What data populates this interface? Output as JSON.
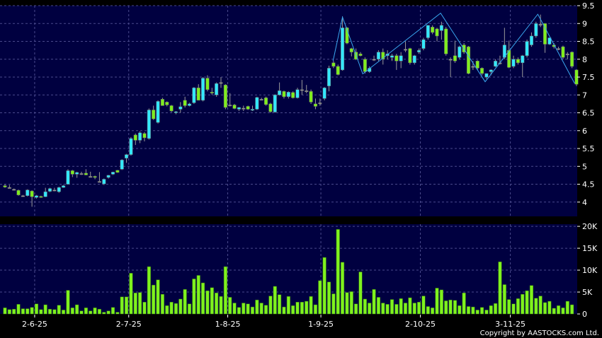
{
  "copyright": "Copyright by AASTOCKS.com Ltd.",
  "colors": {
    "background": "#000000",
    "panel": "#000040",
    "up": "#33e8ff",
    "down": "#7fee1e",
    "neutral": "#a0a0a0",
    "wick": "#9a9a9a",
    "volume": "#7ff21e",
    "zigzag": "#3aa8f0",
    "grid": "#4a4a8c"
  },
  "chart_data": [
    {
      "type": "candlestick",
      "title": "",
      "ylim": [
        3.6,
        9.5
      ],
      "yticks": [
        4,
        4.5,
        5,
        5.5,
        6,
        6.5,
        7,
        7.5,
        8,
        8.5,
        9,
        9.5
      ],
      "ytick_labels": [
        "4",
        "4.5",
        "5",
        "5.5",
        "6",
        "6.5",
        "7",
        "7.5",
        "8",
        "8.5",
        "9",
        "9.5"
      ],
      "grid": true,
      "axis_side": "right",
      "ohlc_fields": [
        "open",
        "high",
        "low",
        "close"
      ],
      "ohlc": [
        [
          4.46,
          4.5,
          4.4,
          4.42
        ],
        [
          4.41,
          4.48,
          4.38,
          4.41
        ],
        [
          4.36,
          4.38,
          4.33,
          4.36
        ],
        [
          4.33,
          4.35,
          4.18,
          4.2
        ],
        [
          4.18,
          4.2,
          4.16,
          4.18
        ],
        [
          4.18,
          4.36,
          4.16,
          4.34
        ],
        [
          4.31,
          4.33,
          3.87,
          4.15
        ],
        [
          4.13,
          4.2,
          4.1,
          4.18
        ],
        [
          4.16,
          4.18,
          4.12,
          4.13
        ],
        [
          4.15,
          4.4,
          4.14,
          4.29
        ],
        [
          4.3,
          4.4,
          4.28,
          4.38
        ],
        [
          4.34,
          4.4,
          4.3,
          4.34
        ],
        [
          4.29,
          4.43,
          4.26,
          4.41
        ],
        [
          4.41,
          4.48,
          4.4,
          4.46
        ],
        [
          4.5,
          4.92,
          4.49,
          4.88
        ],
        [
          4.88,
          4.9,
          4.7,
          4.78
        ],
        [
          4.78,
          4.85,
          4.68,
          4.83
        ],
        [
          4.8,
          4.85,
          4.76,
          4.8
        ],
        [
          4.81,
          4.92,
          4.75,
          4.76
        ],
        [
          4.72,
          4.85,
          4.7,
          4.72
        ],
        [
          4.72,
          4.74,
          4.64,
          4.69
        ],
        [
          4.58,
          4.84,
          4.55,
          4.58
        ],
        [
          4.51,
          4.66,
          4.48,
          4.64
        ],
        [
          4.69,
          4.76,
          4.66,
          4.75
        ],
        [
          4.78,
          4.85,
          4.76,
          4.84
        ],
        [
          4.89,
          4.9,
          4.82,
          4.83
        ],
        [
          4.92,
          5.2,
          4.9,
          5.18
        ],
        [
          5.23,
          5.35,
          5.1,
          5.33
        ],
        [
          5.33,
          5.82,
          5.3,
          5.78
        ],
        [
          5.88,
          5.92,
          5.6,
          5.73
        ],
        [
          5.73,
          5.98,
          5.65,
          5.94
        ],
        [
          5.92,
          5.96,
          5.7,
          5.8
        ],
        [
          5.78,
          6.62,
          5.75,
          6.58
        ],
        [
          6.58,
          6.7,
          6.3,
          6.33
        ],
        [
          6.23,
          6.85,
          6.2,
          6.82
        ],
        [
          6.88,
          6.92,
          6.7,
          6.7
        ],
        [
          6.8,
          6.82,
          6.68,
          6.72
        ],
        [
          6.7,
          6.72,
          6.52,
          6.55
        ],
        [
          6.5,
          6.55,
          6.46,
          6.53
        ],
        [
          6.6,
          6.8,
          6.5,
          6.67
        ],
        [
          6.85,
          6.95,
          6.65,
          6.7
        ],
        [
          6.7,
          6.78,
          6.68,
          6.75
        ],
        [
          6.78,
          7.22,
          6.75,
          7.2
        ],
        [
          7.2,
          7.3,
          6.85,
          6.85
        ],
        [
          6.85,
          7.5,
          6.82,
          7.47
        ],
        [
          7.47,
          7.55,
          7.1,
          7.15
        ],
        [
          7.08,
          7.2,
          7.0,
          7.05
        ],
        [
          7.0,
          7.35,
          6.95,
          7.32
        ],
        [
          7.35,
          7.5,
          7.2,
          7.35
        ],
        [
          7.28,
          7.3,
          6.6,
          6.65
        ],
        [
          6.72,
          7.05,
          6.68,
          6.72
        ],
        [
          6.72,
          6.75,
          6.6,
          6.62
        ],
        [
          6.6,
          6.66,
          6.55,
          6.65
        ],
        [
          6.63,
          6.7,
          6.55,
          6.63
        ],
        [
          6.68,
          6.7,
          6.58,
          6.6
        ],
        [
          6.58,
          6.7,
          6.55,
          6.6
        ],
        [
          6.6,
          6.95,
          6.58,
          6.93
        ],
        [
          6.88,
          6.92,
          6.85,
          6.88
        ],
        [
          6.92,
          6.95,
          6.7,
          6.73
        ],
        [
          6.75,
          6.78,
          6.5,
          6.53
        ],
        [
          6.52,
          7.02,
          6.5,
          7.0
        ],
        [
          7.0,
          7.35,
          6.98,
          7.12
        ],
        [
          7.1,
          7.12,
          6.9,
          6.95
        ],
        [
          6.95,
          7.1,
          6.9,
          7.08
        ],
        [
          7.07,
          7.1,
          6.9,
          6.92
        ],
        [
          6.92,
          7.2,
          6.9,
          7.15
        ],
        [
          7.15,
          7.42,
          7.0,
          7.15
        ],
        [
          7.12,
          7.28,
          7.05,
          7.12
        ],
        [
          7.1,
          7.15,
          6.75,
          6.8
        ],
        [
          6.75,
          6.9,
          6.6,
          6.68
        ],
        [
          6.78,
          6.9,
          6.7,
          6.78
        ],
        [
          6.9,
          7.22,
          6.85,
          7.2
        ],
        [
          7.25,
          7.82,
          7.1,
          7.75
        ],
        [
          7.9,
          7.95,
          7.75,
          7.8
        ],
        [
          7.8,
          7.85,
          7.55,
          7.57
        ],
        [
          7.7,
          9.2,
          7.68,
          8.88
        ],
        [
          8.88,
          8.9,
          8.42,
          8.45
        ],
        [
          8.3,
          8.32,
          8.08,
          8.2
        ],
        [
          8.2,
          8.3,
          7.98,
          8.0
        ],
        [
          8.15,
          8.2,
          8.08,
          8.1
        ],
        [
          8.0,
          8.05,
          7.6,
          7.65
        ],
        [
          7.65,
          7.8,
          7.62,
          7.75
        ],
        [
          8.0,
          8.1,
          7.95,
          8.0
        ],
        [
          8.0,
          8.25,
          7.95,
          8.2
        ],
        [
          8.2,
          8.3,
          7.85,
          8.0
        ],
        [
          8.1,
          8.25,
          8.0,
          8.15
        ],
        [
          8.05,
          8.15,
          7.95,
          8.1
        ],
        [
          8.1,
          8.15,
          7.7,
          7.95
        ],
        [
          7.95,
          8.2,
          7.75,
          8.1
        ],
        [
          8.28,
          8.5,
          8.2,
          8.28
        ],
        [
          8.3,
          8.32,
          7.85,
          7.9
        ],
        [
          7.9,
          8.12,
          7.85,
          8.1
        ],
        [
          8.2,
          8.3,
          8.15,
          8.25
        ],
        [
          8.3,
          8.6,
          8.25,
          8.55
        ],
        [
          8.6,
          8.95,
          8.55,
          8.95
        ],
        [
          8.9,
          8.95,
          8.7,
          8.75
        ],
        [
          8.85,
          8.88,
          8.5,
          8.65
        ],
        [
          8.8,
          9.05,
          8.55,
          8.95
        ],
        [
          8.85,
          8.9,
          8.1,
          8.15
        ],
        [
          8.0,
          8.05,
          7.5,
          8.0
        ],
        [
          8.1,
          8.52,
          7.9,
          7.95
        ],
        [
          8.05,
          8.38,
          8.0,
          8.35
        ],
        [
          8.4,
          8.45,
          8.15,
          8.2
        ],
        [
          8.35,
          8.37,
          7.58,
          7.6
        ],
        [
          7.8,
          7.95,
          7.7,
          7.8
        ],
        [
          7.95,
          7.97,
          7.7,
          7.75
        ],
        [
          7.75,
          7.77,
          7.55,
          7.6
        ],
        [
          7.5,
          7.6,
          7.45,
          7.6
        ],
        [
          7.65,
          7.72,
          7.55,
          7.7
        ],
        [
          7.8,
          8.0,
          7.78,
          7.95
        ],
        [
          7.9,
          8.1,
          7.85,
          7.9
        ],
        [
          8.05,
          8.88,
          8.0,
          8.4
        ],
        [
          8.25,
          8.52,
          7.75,
          7.77
        ],
        [
          7.8,
          8.1,
          7.75,
          8.0
        ],
        [
          8.0,
          8.05,
          7.85,
          7.9
        ],
        [
          7.9,
          8.12,
          7.5,
          8.1
        ],
        [
          8.1,
          8.55,
          8.05,
          8.5
        ],
        [
          8.4,
          8.75,
          8.35,
          8.65
        ],
        [
          8.65,
          9.05,
          8.6,
          9.0
        ],
        [
          8.98,
          9.25,
          8.9,
          8.98
        ],
        [
          9.0,
          9.0,
          8.18,
          8.42
        ],
        [
          8.42,
          8.6,
          8.4,
          8.6
        ],
        [
          8.4,
          8.45,
          8.3,
          8.35
        ],
        [
          8.3,
          8.35,
          8.25,
          8.3
        ],
        [
          8.35,
          8.38,
          8.0,
          8.05
        ],
        [
          8.15,
          8.2,
          8.0,
          8.15
        ],
        [
          8.2,
          8.22,
          7.75,
          7.8
        ],
        [
          7.7,
          7.72,
          7.25,
          7.3
        ]
      ],
      "zigzag": [
        [
          72.9,
          7.95
        ],
        [
          75,
          9.18
        ],
        [
          79.5,
          7.59
        ],
        [
          96.8,
          9.29
        ],
        [
          106.7,
          7.37
        ],
        [
          118.4,
          9.26
        ],
        [
          126.6,
          7.32
        ]
      ]
    },
    {
      "type": "bar",
      "title": "",
      "ylim": [
        0,
        20.5
      ],
      "unit": "K",
      "yticks": [
        0,
        5,
        10,
        15,
        20
      ],
      "ytick_labels": [
        "0",
        "5K",
        "10K",
        "15K",
        "20K"
      ],
      "grid": true,
      "values": [
        1.4,
        1.0,
        1.1,
        2.2,
        1.2,
        1.2,
        1.5,
        2.3,
        1.0,
        2.1,
        1.1,
        1.0,
        2.0,
        0.9,
        5.4,
        1.4,
        2.1,
        0.7,
        1.4,
        0.7,
        1.4,
        1.1,
        0.4,
        0.7,
        1.5,
        0.4,
        3.9,
        3.9,
        9.3,
        4.8,
        4.9,
        2.7,
        10.8,
        6.6,
        7.8,
        4.5,
        1.9,
        2.7,
        2.4,
        3.4,
        5.6,
        2.3,
        8.0,
        8.8,
        7.1,
        5.3,
        6.0,
        4.8,
        4.0,
        10.8,
        3.8,
        2.5,
        1.5,
        2.5,
        2.3,
        1.6,
        3.2,
        2.5,
        2.0,
        4.1,
        6.3,
        4.4,
        1.6,
        4.0,
        1.9,
        2.7,
        2.7,
        2.9,
        4.0,
        2.1,
        7.6,
        12.9,
        7.3,
        4.6,
        19.3,
        11.8,
        4.9,
        5.1,
        2.3,
        9.6,
        3.4,
        2.5,
        5.6,
        3.8,
        2.5,
        2.2,
        3.3,
        2.2,
        3.5,
        2.5,
        3.7,
        2.5,
        2.7,
        4.1,
        1.7,
        1.4,
        5.9,
        5.5,
        3.0,
        3.2,
        3.1,
        1.9,
        4.8,
        1.7,
        1.6,
        0.9,
        1.5,
        0.9,
        1.9,
        2.4,
        11.9,
        6.7,
        3.3,
        2.3,
        3.5,
        4.5,
        5.3,
        6.5,
        3.6,
        4.1,
        2.6,
        2.9,
        1.3,
        1.9,
        1.4,
        2.9,
        2.1
      ]
    }
  ],
  "xticks": [
    {
      "label": "2-6-25",
      "index": 6.6
    },
    {
      "label": "2-7-25",
      "index": 27.5
    },
    {
      "label": "1-8-25",
      "index": 49.5
    },
    {
      "label": "1-9-25",
      "index": 70.2
    },
    {
      "label": "2-10-25",
      "index": 92.3
    },
    {
      "label": "3-11-25",
      "index": 112.3
    }
  ]
}
